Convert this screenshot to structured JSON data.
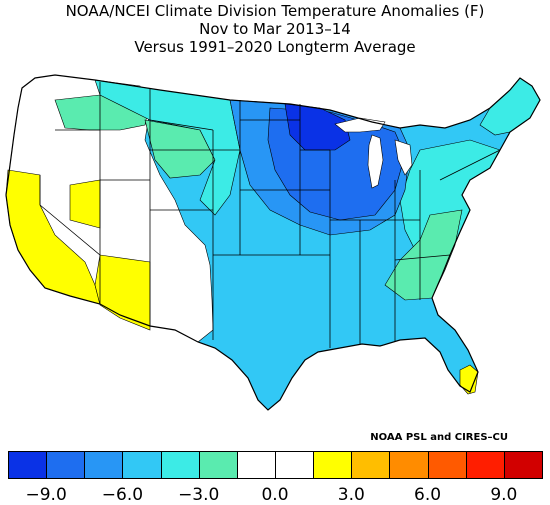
{
  "title": {
    "line1": "NOAA/NCEI Climate Division Temperature Anomalies (F)",
    "line2": "Nov to Mar 2013–14",
    "line3": "Versus 1991–2020 Longterm Average"
  },
  "credit": "NOAA PSL and CIRES–CU",
  "legend": {
    "colors": [
      "#0a32e6",
      "#1e6ef0",
      "#2896f5",
      "#32c8f5",
      "#3cebe6",
      "#5aebaf",
      "#ffffff",
      "#ffffff",
      "#ffff00",
      "#ffbe00",
      "#ff8c00",
      "#ff5a00",
      "#ff1e00",
      "#d20000"
    ],
    "ticks": [
      "−9.0",
      "−6.0",
      "−3.0",
      "0.0",
      "3.0",
      "6.0",
      "9.0"
    ]
  },
  "map_colors": {
    "outline": "#000000",
    "deep_blue": "#0a32e6",
    "blue": "#1e6ef0",
    "mid_blue": "#2896f5",
    "cyan": "#32c8f5",
    "aqua": "#3cebe6",
    "green": "#5aebaf",
    "white": "#ffffff",
    "yellow": "#ffff00"
  }
}
